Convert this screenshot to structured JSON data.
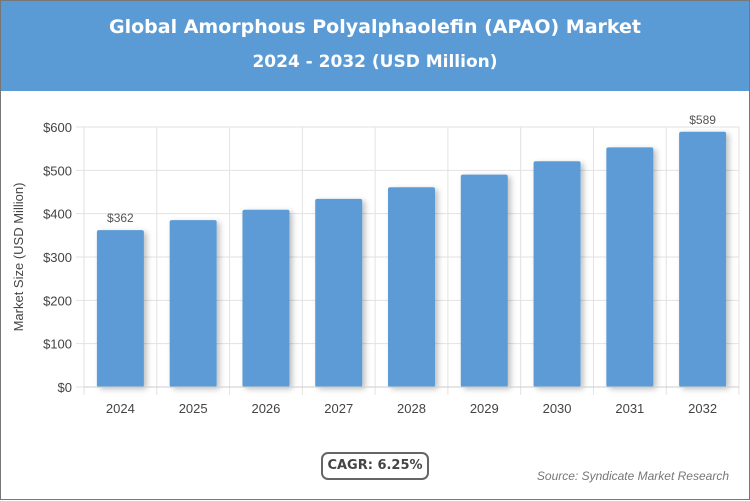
{
  "chart_data": {
    "type": "bar",
    "title": "Global Amorphous Polyalphaolefin (APAO) Market",
    "subtitle": "2024 - 2032 (USD Million)",
    "ylabel": "Market Size (USD Million)",
    "xlabel": "",
    "categories": [
      "2024",
      "2025",
      "2026",
      "2027",
      "2028",
      "2029",
      "2030",
      "2031",
      "2032"
    ],
    "values": [
      362,
      385,
      409,
      434,
      461,
      490,
      521,
      553,
      589
    ],
    "data_labels": {
      "0": "$362",
      "8": "$589"
    },
    "ylim": [
      0,
      600
    ],
    "yticks": [
      "$0",
      "$100",
      "$200",
      "$300",
      "$400",
      "$500",
      "$600"
    ],
    "grid": true,
    "bar_color": "#5b9bd5"
  },
  "cagr": "CAGR: 6.25%",
  "source": "Source: Syndicate Market Research"
}
